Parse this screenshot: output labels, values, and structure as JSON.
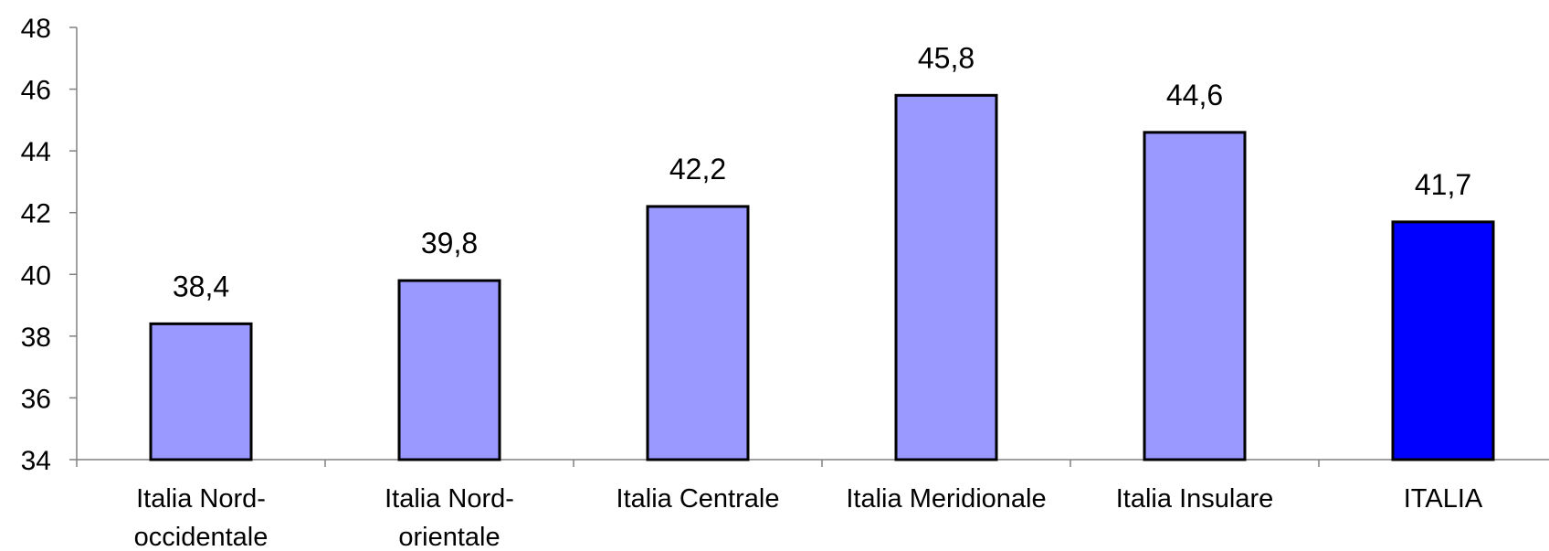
{
  "chart_data": {
    "type": "bar",
    "categories": [
      [
        "Italia Nord-",
        "occidentale"
      ],
      [
        "Italia Nord-",
        "orientale"
      ],
      [
        "Italia Centrale"
      ],
      [
        "Italia Meridionale"
      ],
      [
        "Italia Insulare"
      ],
      [
        "ITALIA"
      ]
    ],
    "values": [
      38.4,
      39.8,
      42.2,
      45.8,
      44.6,
      41.7
    ],
    "value_labels": [
      "38,4",
      "39,8",
      "42,2",
      "45,8",
      "44,6",
      "41,7"
    ],
    "ylim": [
      34,
      48
    ],
    "yticks": [
      34,
      36,
      38,
      40,
      42,
      44,
      46,
      48
    ],
    "title": "",
    "xlabel": "",
    "ylabel": "",
    "grid": false,
    "legend": "none",
    "colors": {
      "bar": "#9999FF",
      "highlight_bar": "#0000FF",
      "highlight_index": 5
    }
  }
}
